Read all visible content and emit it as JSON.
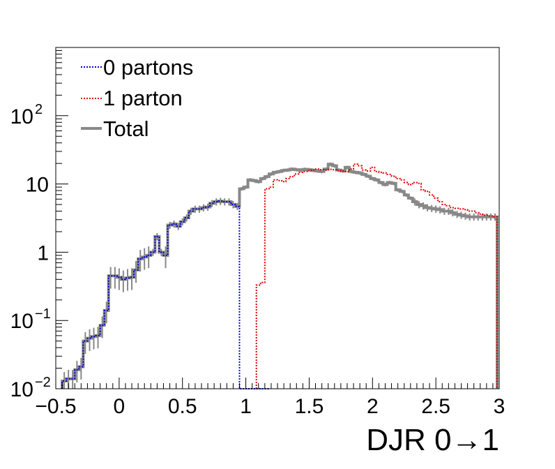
{
  "chart_data": {
    "type": "step",
    "xlabel": "DJR 0→1",
    "ylabel": "",
    "title": "",
    "xlim": [
      -0.5,
      3.0
    ],
    "ylim": [
      0.01,
      1000
    ],
    "yscale": "log",
    "grid": false,
    "legend_position": "top-left",
    "bin_width": 0.0333,
    "x_ticks": [
      {
        "value": -0.5,
        "label": "−0.5"
      },
      {
        "value": 0,
        "label": "0"
      },
      {
        "value": 0.5,
        "label": "0.5"
      },
      {
        "value": 1,
        "label": "1"
      },
      {
        "value": 1.5,
        "label": "1.5"
      },
      {
        "value": 2,
        "label": "2"
      },
      {
        "value": 2.5,
        "label": "2.5"
      },
      {
        "value": 3,
        "label": "3"
      }
    ],
    "y_ticks": [
      {
        "value": 0.01,
        "base": "10",
        "exp": "−2"
      },
      {
        "value": 0.1,
        "base": "10",
        "exp": "−1"
      },
      {
        "value": 1,
        "base": "1",
        "exp": ""
      },
      {
        "value": 10,
        "base": "10",
        "exp": ""
      },
      {
        "value": 100,
        "base": "10",
        "exp": "2"
      }
    ],
    "series": [
      {
        "name": "0 partons",
        "color": "#0000cc",
        "style": "dotted",
        "x": [
          -0.433,
          -0.4,
          -0.367,
          -0.333,
          -0.3,
          -0.267,
          -0.233,
          -0.2,
          -0.167,
          -0.133,
          -0.1,
          -0.067,
          -0.033,
          0.0,
          0.033,
          0.067,
          0.1,
          0.133,
          0.167,
          0.2,
          0.233,
          0.267,
          0.3,
          0.333,
          0.367,
          0.4,
          0.433,
          0.467,
          0.5,
          0.533,
          0.567,
          0.6,
          0.633,
          0.667,
          0.7,
          0.733,
          0.767,
          0.8,
          0.833,
          0.867,
          0.9,
          0.933,
          0.967,
          1.0,
          1.033,
          1.067,
          1.1,
          1.133,
          1.167
        ],
        "values": [
          0.013,
          0.014,
          0.014,
          0.019,
          0.021,
          0.05,
          0.055,
          0.058,
          0.06,
          0.085,
          0.14,
          0.45,
          0.45,
          0.43,
          0.4,
          0.42,
          0.43,
          0.55,
          0.8,
          0.85,
          0.9,
          1.0,
          1.7,
          1.0,
          0.9,
          2.5,
          2.6,
          2.4,
          2.8,
          3.2,
          4.0,
          4.3,
          4.3,
          4.5,
          4.6,
          5.2,
          5.5,
          5.6,
          5.5,
          5.5,
          5.0,
          4.7,
          0.0,
          0.0,
          0.0,
          0.0,
          0.0,
          0.0,
          0.0
        ]
      },
      {
        "name": "1 parton",
        "color": "#dd0000",
        "style": "dotted",
        "x": [
          1.1,
          1.133,
          1.167,
          1.2,
          1.233,
          1.267,
          1.3,
          1.333,
          1.367,
          1.4,
          1.433,
          1.467,
          1.5,
          1.533,
          1.567,
          1.6,
          1.633,
          1.667,
          1.7,
          1.733,
          1.767,
          1.8,
          1.833,
          1.867,
          1.9,
          1.933,
          1.967,
          2.0,
          2.033,
          2.067,
          2.1,
          2.133,
          2.167,
          2.2,
          2.233,
          2.267,
          2.3,
          2.333,
          2.367,
          2.4,
          2.433,
          2.467,
          2.5,
          2.533,
          2.567,
          2.6,
          2.633,
          2.667,
          2.7,
          2.733,
          2.767,
          2.8,
          2.833,
          2.867,
          2.9,
          2.933,
          2.967
        ],
        "values": [
          0.33,
          0.36,
          8.5,
          9.0,
          11.5,
          11.2,
          10.8,
          12.0,
          12.8,
          14.0,
          14.8,
          15.2,
          15.8,
          16.0,
          16.5,
          16.2,
          16.0,
          16.4,
          16.2,
          15.8,
          15.5,
          15.2,
          16.5,
          19.5,
          18.5,
          16.0,
          15.5,
          17.5,
          15.2,
          14.8,
          14.5,
          13.8,
          13.0,
          12.0,
          11.5,
          10.5,
          9.8,
          10.5,
          10.2,
          8.2,
          7.8,
          6.9,
          6.2,
          5.5,
          5.0,
          4.8,
          4.5,
          4.4,
          4.3,
          4.2,
          4.0,
          4.0,
          3.8,
          3.6,
          3.5,
          3.4,
          3.3
        ]
      },
      {
        "name": "Total",
        "color": "#888888",
        "style": "solid",
        "x": [
          -0.433,
          -0.4,
          -0.367,
          -0.333,
          -0.3,
          -0.267,
          -0.233,
          -0.2,
          -0.167,
          -0.133,
          -0.1,
          -0.067,
          -0.033,
          0.0,
          0.033,
          0.067,
          0.1,
          0.133,
          0.167,
          0.2,
          0.233,
          0.267,
          0.3,
          0.333,
          0.367,
          0.4,
          0.433,
          0.467,
          0.5,
          0.533,
          0.567,
          0.6,
          0.633,
          0.667,
          0.7,
          0.733,
          0.767,
          0.8,
          0.833,
          0.867,
          0.9,
          0.933,
          0.967,
          1.0,
          1.033,
          1.067,
          1.1,
          1.133,
          1.167,
          1.2,
          1.233,
          1.267,
          1.3,
          1.333,
          1.367,
          1.4,
          1.433,
          1.467,
          1.5,
          1.533,
          1.567,
          1.6,
          1.633,
          1.667,
          1.7,
          1.733,
          1.767,
          1.8,
          1.833,
          1.867,
          1.9,
          1.933,
          1.967,
          2.0,
          2.033,
          2.067,
          2.1,
          2.133,
          2.167,
          2.2,
          2.233,
          2.267,
          2.3,
          2.333,
          2.367,
          2.4,
          2.433,
          2.467,
          2.5,
          2.533,
          2.567,
          2.6,
          2.633,
          2.667,
          2.7,
          2.733,
          2.767,
          2.8,
          2.833,
          2.867,
          2.9,
          2.933,
          2.967
        ],
        "values": [
          0.013,
          0.014,
          0.014,
          0.019,
          0.021,
          0.05,
          0.055,
          0.058,
          0.06,
          0.085,
          0.14,
          0.45,
          0.45,
          0.43,
          0.4,
          0.42,
          0.43,
          0.55,
          0.8,
          0.85,
          0.9,
          1.0,
          1.7,
          1.0,
          0.9,
          2.5,
          2.6,
          2.4,
          2.8,
          3.2,
          4.0,
          4.3,
          4.3,
          4.5,
          4.6,
          5.2,
          5.5,
          5.6,
          5.5,
          5.5,
          5.0,
          4.7,
          8.5,
          9.0,
          11.5,
          11.2,
          10.8,
          12.0,
          12.8,
          14.0,
          14.8,
          15.2,
          15.8,
          16.0,
          16.5,
          16.2,
          16.0,
          16.4,
          16.2,
          15.8,
          15.5,
          15.2,
          16.5,
          19.5,
          18.5,
          16.0,
          15.5,
          17.5,
          15.2,
          14.8,
          14.5,
          13.8,
          13.0,
          12.0,
          11.5,
          10.5,
          9.8,
          10.5,
          10.2,
          8.2,
          7.8,
          6.9,
          6.2,
          5.5,
          5.0,
          4.8,
          4.5,
          4.4,
          4.3,
          4.2,
          4.0,
          4.0,
          3.8,
          3.6,
          3.5,
          3.4,
          3.3,
          3.3,
          3.3,
          3.3,
          3.3,
          3.3,
          3.3
        ]
      }
    ]
  },
  "legend": {
    "items": [
      {
        "label": "0 partons",
        "color": "#0000cc"
      },
      {
        "label": "1 parton",
        "color": "#dd0000"
      },
      {
        "label": "Total",
        "color": "#888888"
      }
    ]
  }
}
